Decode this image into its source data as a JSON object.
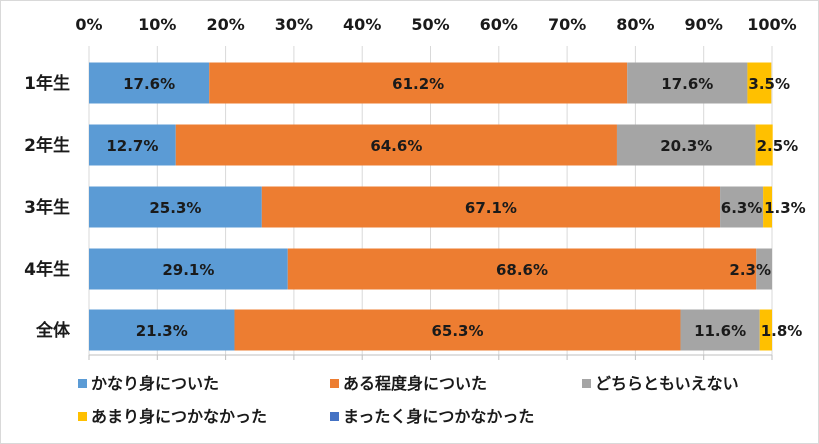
{
  "chart_data": {
    "type": "bar",
    "orientation": "horizontal",
    "stacked": "percent",
    "title": "",
    "xlabel": "",
    "ylabel": "",
    "xlim": [
      0,
      100
    ],
    "x_ticks": [
      "0%",
      "10%",
      "20%",
      "30%",
      "40%",
      "50%",
      "60%",
      "70%",
      "80%",
      "90%",
      "100%"
    ],
    "x_axis_position": "top",
    "grid": true,
    "legend_position": "bottom",
    "categories": [
      "1年生",
      "2年生",
      "3年生",
      "4年生",
      "全体"
    ],
    "series": [
      {
        "name": "かなり身についた",
        "color": "#5B9BD5",
        "values": [
          17.6,
          12.7,
          25.3,
          29.1,
          21.3
        ],
        "labels": [
          "17.6%",
          "12.7%",
          "25.3%",
          "29.1%",
          "21.3%"
        ]
      },
      {
        "name": "ある程度身についた",
        "color": "#ED7D31",
        "values": [
          61.2,
          64.6,
          67.1,
          68.6,
          65.3
        ],
        "labels": [
          "61.2%",
          "64.6%",
          "67.1%",
          "68.6%",
          "65.3%"
        ]
      },
      {
        "name": "どちらともいえない",
        "color": "#A5A5A5",
        "values": [
          17.6,
          20.3,
          6.3,
          2.3,
          11.6
        ],
        "labels": [
          "17.6%",
          "20.3%",
          "6.3%",
          "2.3%",
          "11.6%"
        ]
      },
      {
        "name": "あまり身につかなかった",
        "color": "#FFC000",
        "values": [
          3.5,
          2.5,
          1.3,
          0,
          1.8
        ],
        "labels": [
          "3.5%",
          "2.5%",
          "1.3%",
          "",
          "1.8%"
        ]
      },
      {
        "name": "まったく身につかなかった",
        "color": "#4472C4",
        "values": [
          0,
          0,
          0,
          0,
          0
        ],
        "labels": [
          "",
          "",
          "",
          "",
          ""
        ]
      }
    ]
  }
}
